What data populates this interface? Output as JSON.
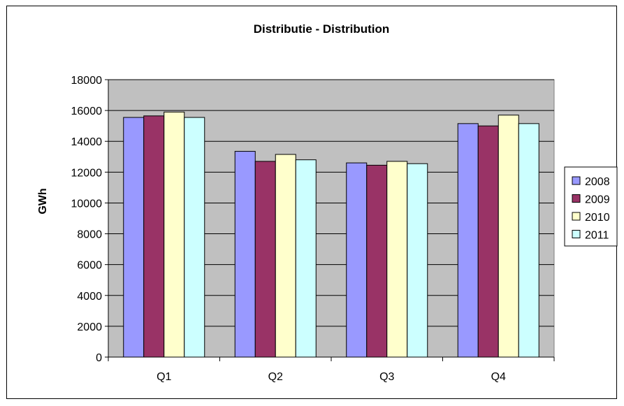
{
  "chart_data": {
    "type": "bar",
    "title": "Distributie - Distribution",
    "xlabel": "",
    "ylabel": "GWh",
    "categories": [
      "Q1",
      "Q2",
      "Q3",
      "Q4"
    ],
    "ylim": [
      0,
      18000
    ],
    "yticks": [
      "0",
      "2000",
      "4000",
      "6000",
      "8000",
      "10000",
      "12000",
      "14000",
      "16000",
      "18000"
    ],
    "grid": true,
    "legend_position": "right",
    "plot_background": "#c0c0c0",
    "series": [
      {
        "name": "2008",
        "color": "#9999ff",
        "values": [
          15550,
          13350,
          12600,
          15150
        ]
      },
      {
        "name": "2009",
        "color": "#993366",
        "values": [
          15650,
          12700,
          12450,
          15000
        ]
      },
      {
        "name": "2010",
        "color": "#ffffcc",
        "values": [
          15900,
          13150,
          12700,
          15700
        ]
      },
      {
        "name": "2011",
        "color": "#ccffff",
        "values": [
          15550,
          12800,
          12550,
          15150
        ]
      }
    ]
  }
}
